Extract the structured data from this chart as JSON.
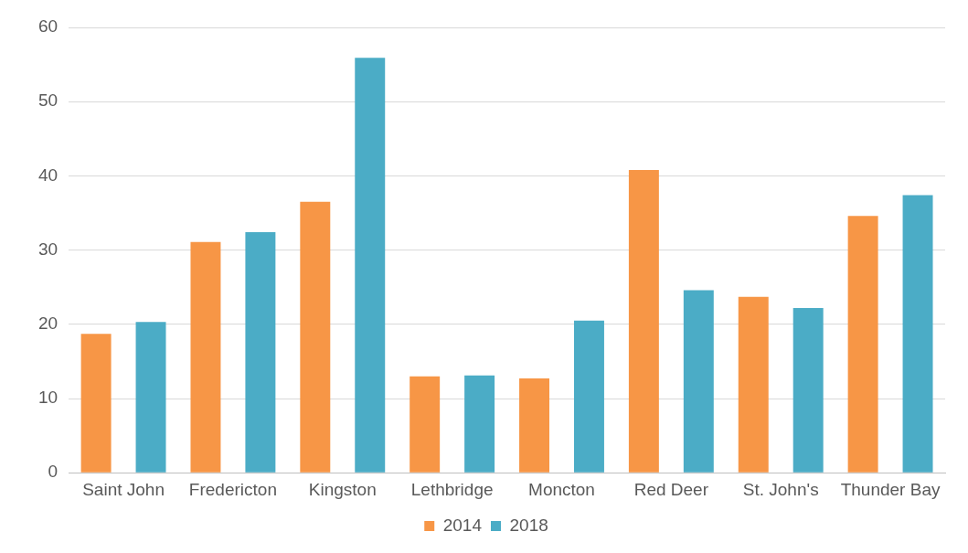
{
  "chart_data": {
    "type": "bar",
    "categories": [
      "Saint John",
      "Fredericton",
      "Kingston",
      "Lethbridge",
      "Moncton",
      "Red Deer",
      "St. John's",
      "Thunder Bay"
    ],
    "series": [
      {
        "name": "2014",
        "color": "#f79646",
        "values": [
          18.7,
          31.1,
          36.5,
          13.0,
          12.7,
          40.8,
          23.7,
          34.6
        ]
      },
      {
        "name": "2018",
        "color": "#4bacc6",
        "values": [
          20.3,
          32.4,
          55.9,
          13.1,
          20.5,
          24.6,
          22.2,
          37.4
        ]
      }
    ],
    "ylim": [
      0,
      60
    ],
    "yticks": [
      0,
      10,
      20,
      30,
      40,
      50,
      60
    ],
    "grid": "y",
    "legend": "bottom"
  }
}
